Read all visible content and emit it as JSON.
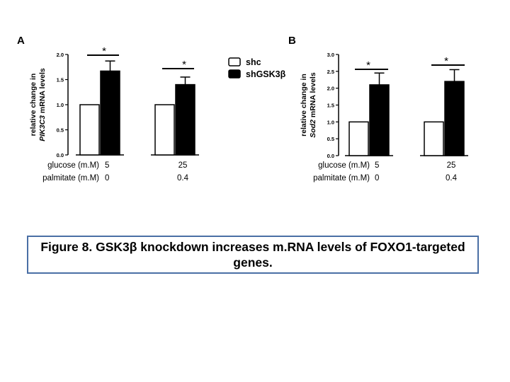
{
  "caption": "Figure 8.  GSK3β knockdown increases m.RNA levels of FOXO1-targeted genes.",
  "legend": {
    "items": [
      {
        "label": "shc",
        "color": "#ffffff"
      },
      {
        "label": "shGSK3β",
        "color": "#000000"
      }
    ]
  },
  "chart_data": [
    {
      "type": "bar",
      "panel_label": "A",
      "ylabel_prefix": "relative change in",
      "ylabel_gene": "PIK3C3",
      "ylabel_suffix": "mRNA levels",
      "ylim": [
        0,
        2.0
      ],
      "yticks": [
        "0.0",
        "0.5",
        "1.0",
        "1.5",
        "2.0"
      ],
      "row_labels": [
        "glucose (m.M)",
        "palmitate (m.M)"
      ],
      "groups": [
        {
          "glucose": "5",
          "palmitate": "0"
        },
        {
          "glucose": "25",
          "palmitate": "0.4"
        }
      ],
      "series": [
        {
          "name": "shc",
          "values": [
            1.0,
            1.0
          ],
          "errors": [
            0,
            0
          ]
        },
        {
          "name": "shGSK3β",
          "values": [
            1.67,
            1.4
          ],
          "errors": [
            0.2,
            0.15
          ]
        }
      ],
      "significance": [
        "*",
        "*"
      ]
    },
    {
      "type": "bar",
      "panel_label": "B",
      "ylabel_prefix": "relative change in",
      "ylabel_gene": "Sod2",
      "ylabel_suffix": "mRNA levels",
      "ylim": [
        0,
        3.0
      ],
      "yticks": [
        "0.0",
        "0.5",
        "1.0",
        "1.5",
        "2.0",
        "2.5",
        "3.0"
      ],
      "row_labels": [
        "glucose (m.M)",
        "palmitate (m.M)"
      ],
      "groups": [
        {
          "glucose": "5",
          "palmitate": "0"
        },
        {
          "glucose": "25",
          "palmitate": "0.4"
        }
      ],
      "series": [
        {
          "name": "shc",
          "values": [
            1.0,
            1.0
          ],
          "errors": [
            0,
            0
          ]
        },
        {
          "name": "shGSK3β",
          "values": [
            2.1,
            2.2
          ],
          "errors": [
            0.35,
            0.35
          ]
        }
      ],
      "significance": [
        "*",
        "*"
      ]
    }
  ]
}
